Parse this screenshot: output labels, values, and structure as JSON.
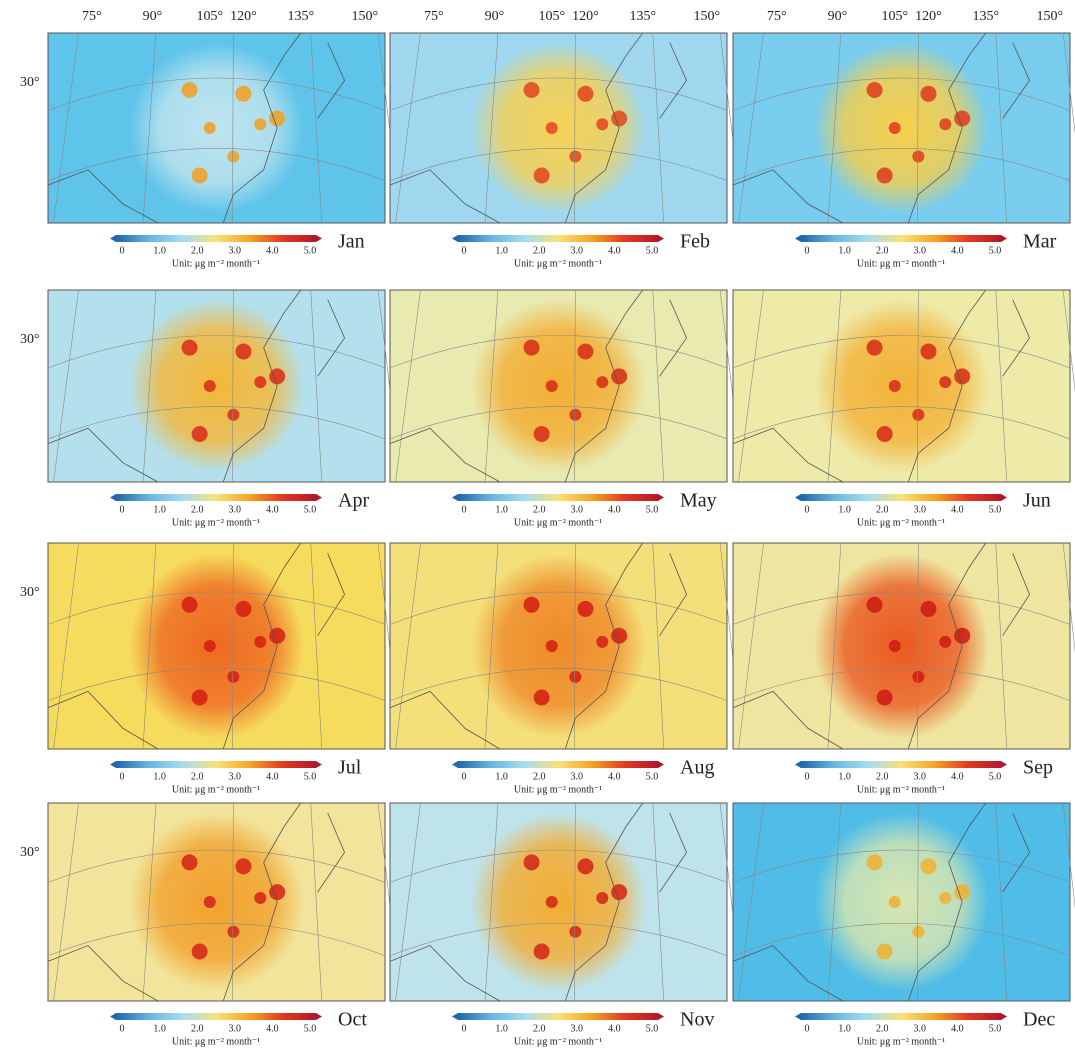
{
  "longitude_labels": [
    "75°",
    "90°",
    "105°",
    "120°",
    "135°",
    "150°"
  ],
  "latitude_label": "30°",
  "colorbar": {
    "ticks": [
      "0",
      "1.0",
      "2.0",
      "3.0",
      "4.0",
      "5.0"
    ],
    "unit": "Unit:  μg m⁻² month⁻¹",
    "colors": [
      "#2166ac",
      "#67b7e1",
      "#a8dcef",
      "#f7e27a",
      "#f5a623",
      "#e23a1f",
      "#b2182b"
    ]
  },
  "panels": [
    {
      "month": "Jan",
      "background": "#5ec4ea",
      "glow": "#bfe4ef",
      "hot": "#f0a020"
    },
    {
      "month": "Feb",
      "background": "#9fd8ee",
      "glow": "#f6d154",
      "hot": "#e2451f"
    },
    {
      "month": "Mar",
      "background": "#78cdee",
      "glow": "#f6cf4c",
      "hot": "#dd3a1c"
    },
    {
      "month": "Apr",
      "background": "#b3e0ec",
      "glow": "#f4b83a",
      "hot": "#d92a1a"
    },
    {
      "month": "May",
      "background": "#e8eab0",
      "glow": "#f3ae34",
      "hot": "#d62a18"
    },
    {
      "month": "Jun",
      "background": "#eeeaa8",
      "glow": "#f3b33a",
      "hot": "#d62a18"
    },
    {
      "month": "Jul",
      "background": "#f6dc5c",
      "glow": "#ee6a22",
      "hot": "#d41c14"
    },
    {
      "month": "Aug",
      "background": "#f4e07a",
      "glow": "#ef8a2a",
      "hot": "#d41c14"
    },
    {
      "month": "Sep",
      "background": "#eee6a0",
      "glow": "#ea5a22",
      "hot": "#cc1a14"
    },
    {
      "month": "Oct",
      "background": "#f2e49a",
      "glow": "#f1a22e",
      "hot": "#d42218"
    },
    {
      "month": "Nov",
      "background": "#bfe3ea",
      "glow": "#f3ad33",
      "hot": "#d42218"
    },
    {
      "month": "Dec",
      "background": "#4fbde8",
      "glow": "#d8e6b0",
      "hot": "#f0b030"
    }
  ]
}
